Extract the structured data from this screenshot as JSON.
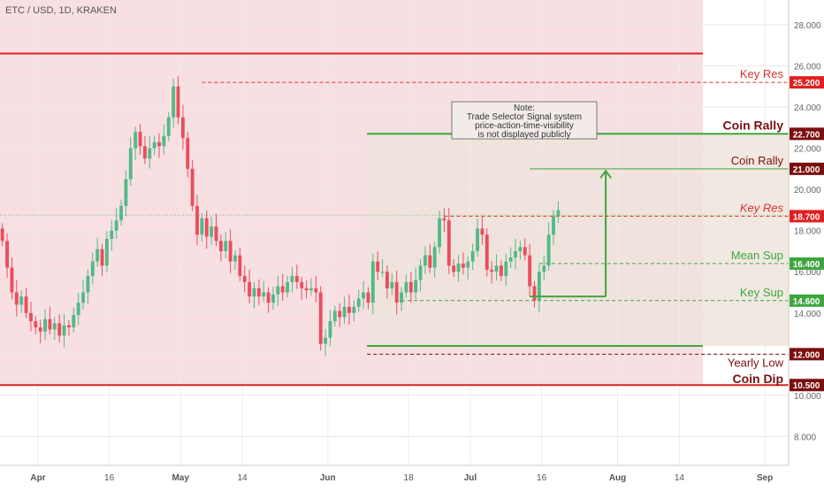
{
  "chart_data": {
    "type": "candlestick",
    "title": "ETC / USD, 1D, KRAKEN",
    "y_axis": {
      "position": "right",
      "ylim": [
        6.6,
        29.2
      ],
      "ticks": [
        "8.000",
        "10.000",
        "12.000",
        "14.000",
        "16.000",
        "18.000",
        "20.000",
        "22.000",
        "24.000",
        "26.000",
        "28.000"
      ],
      "tick_values": [
        8,
        10,
        12,
        14,
        16,
        18,
        20,
        22,
        24,
        26,
        28
      ]
    },
    "x_axis": {
      "type": "date",
      "range": [
        "2018-03-24",
        "2018-09-06"
      ],
      "ticks": [
        {
          "label": "Apr",
          "date": "2018-04-01",
          "bold": true
        },
        {
          "label": "16",
          "date": "2018-04-16",
          "bold": false
        },
        {
          "label": "May",
          "date": "2018-05-01",
          "bold": true
        },
        {
          "label": "14",
          "date": "2018-05-14",
          "bold": false
        },
        {
          "label": "Jun",
          "date": "2018-06-01",
          "bold": true
        },
        {
          "label": "18",
          "date": "2018-06-18",
          "bold": false
        },
        {
          "label": "Jul",
          "date": "2018-07-01",
          "bold": true
        },
        {
          "label": "16",
          "date": "2018-07-16",
          "bold": false
        },
        {
          "label": "Aug",
          "date": "2018-08-01",
          "bold": true
        },
        {
          "label": "14",
          "date": "2018-08-14",
          "bold": false
        },
        {
          "label": "Sep",
          "date": "2018-09-01",
          "bold": true
        }
      ]
    },
    "colors": {
      "up": "#53b987",
      "down": "#eb4d5c",
      "support": "#3fa63f",
      "resistance": "#e02020",
      "dark_label": "#7b0f0f",
      "pink_zone": "#f7dfe2",
      "box_zone": "#eee4dc"
    },
    "start_date": "2018-03-24",
    "closes": [
      17.5,
      16.2,
      15.0,
      14.4,
      14.8,
      14.0,
      13.6,
      13.3,
      13.1,
      13.7,
      13.2,
      13.5,
      12.9,
      13.4,
      13.3,
      13.9,
      14.5,
      15.0,
      15.8,
      16.5,
      17.1,
      16.3,
      17.6,
      18.0,
      18.5,
      19.2,
      20.5,
      22.0,
      22.8,
      22.1,
      21.5,
      22.0,
      22.3,
      22.1,
      22.6,
      23.5,
      25.0,
      23.5,
      22.5,
      21.0,
      19.2,
      17.8,
      18.6,
      17.7,
      18.2,
      17.5,
      17.0,
      17.5,
      16.5,
      16.8,
      15.8,
      15.5,
      14.8,
      15.2,
      14.8,
      15.0,
      14.5,
      14.9,
      15.3,
      15.0,
      15.5,
      15.8,
      15.5,
      15.2,
      15.1,
      15.2,
      15.0,
      12.5,
      12.8,
      13.6,
      14.1,
      13.8,
      14.3,
      14.0,
      14.3,
      14.7,
      15.0,
      14.5,
      16.5,
      16.0,
      16.0,
      15.2,
      15.5,
      14.5,
      15.0,
      15.5,
      15.0,
      15.6,
      16.3,
      16.8,
      16.2,
      17.2,
      18.6,
      18.5,
      16.3,
      16.0,
      16.4,
      16.2,
      16.5,
      17.0,
      18.1,
      17.8,
      16.1,
      16.0,
      16.3,
      15.8,
      16.5,
      16.7,
      17.0,
      17.2,
      16.8,
      15.3,
      14.6,
      16.0,
      16.3,
      17.8,
      18.7,
      19.0
    ],
    "levels": [
      {
        "name": "Key Res",
        "price": 25.2,
        "label_text": "Key Res",
        "badge": "25.200",
        "badge_color": "#e02020",
        "text_color": "#e03030",
        "style": "dashed-red"
      },
      {
        "name": "Coin Rally",
        "price": 22.7,
        "label_text": "Coin Rally",
        "badge": "22.700",
        "badge_color": "#7b0f0f",
        "text_color": "#7b0f0f",
        "style": "solid-green",
        "bold": true
      },
      {
        "name": "Coin Rally Target",
        "price": 21.0,
        "label_text": "Coin Rally",
        "badge": "21.000",
        "badge_color": "#7b0f0f",
        "text_color": "#7b0f0f",
        "style": "solid-green-short"
      },
      {
        "name": "Key Res 2",
        "price": 18.7,
        "label_text": "Key Res",
        "badge": "18.700",
        "badge_color": "#e02020",
        "text_color": "#e03030",
        "style": "dashed-red",
        "italic": true
      },
      {
        "name": "Mean Sup",
        "price": 16.4,
        "label_text": "Mean Sup",
        "badge": "16.400",
        "badge_color": "#3fa63f",
        "text_color": "#3fa63f",
        "style": "dashed-green"
      },
      {
        "name": "Key Sup",
        "price": 14.6,
        "label_text": "Key Sup",
        "badge": "14.600",
        "badge_color": "#3fa63f",
        "text_color": "#3fa63f",
        "style": "dashed-green"
      },
      {
        "name": "Yearly Low",
        "price": 12.0,
        "label_text": "Yearly Low",
        "badge": "12.000",
        "badge_color": "#7b0f0f",
        "text_color": "#7b0f0f",
        "style": "dashed-darkred"
      },
      {
        "name": "Coin Dip",
        "price": 10.5,
        "label_text": "Coin Dip",
        "badge": "10.500",
        "badge_color": "#7b0f0f",
        "text_color": "#7b0f0f",
        "style": "solid-red",
        "bold": true
      }
    ],
    "upper_red_line": 26.6,
    "box_bottom": 12.4,
    "note": [
      "Note:",
      "Trade Selector Signal system",
      "price-action-time-visibility",
      "is not displayed publicly"
    ]
  }
}
